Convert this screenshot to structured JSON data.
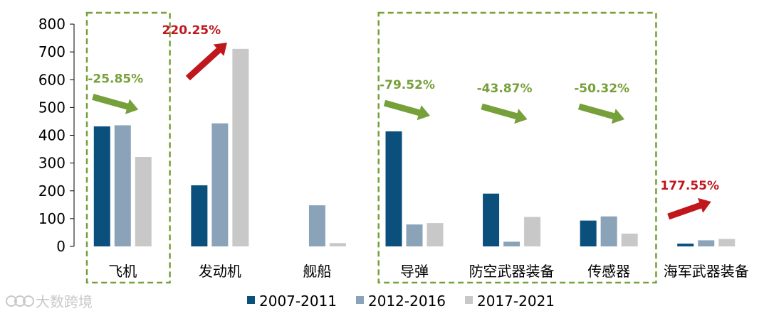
{
  "chart_data": {
    "type": "bar",
    "categories": [
      "飞机",
      "发动机",
      "舰船",
      "导弹",
      "防空武器装备",
      "传感器",
      "海军武器装备"
    ],
    "series": [
      {
        "name": "2007-2011",
        "color": "#0b4f7c",
        "values": [
          432,
          220,
          0,
          414,
          190,
          93,
          10
        ]
      },
      {
        "name": "2012-2016",
        "color": "#8aa3b8",
        "values": [
          436,
          443,
          148,
          79,
          17,
          108,
          22
        ]
      },
      {
        "name": "2017-2021",
        "color": "#c8c8c8",
        "values": [
          322,
          711,
          12,
          84,
          106,
          46,
          27
        ]
      }
    ],
    "ylim": [
      0,
      800
    ],
    "yticks": [
      0,
      100,
      200,
      300,
      400,
      500,
      600,
      700,
      800
    ],
    "legend_position": "bottom",
    "annotations": [
      {
        "category": "飞机",
        "text": "-25.85%",
        "direction": "down",
        "color": "#76a03a"
      },
      {
        "category": "发动机",
        "text": "220.25%",
        "direction": "up",
        "color": "#c0171d"
      },
      {
        "category": "导弹",
        "text": "-79.52%",
        "direction": "down",
        "color": "#76a03a"
      },
      {
        "category": "防空武器装备",
        "text": "-43.87%",
        "direction": "down",
        "color": "#76a03a"
      },
      {
        "category": "传感器",
        "text": "-50.32%",
        "direction": "down",
        "color": "#76a03a"
      },
      {
        "category": "海军武器装备",
        "text": "177.55%",
        "direction": "up",
        "color": "#c0171d"
      }
    ],
    "highlight_groups": [
      {
        "categories": [
          "飞机"
        ],
        "style": "dashed",
        "color": "#76a03a"
      },
      {
        "categories": [
          "导弹",
          "防空武器装备",
          "传感器"
        ],
        "style": "dashed",
        "color": "#76a03a"
      }
    ]
  },
  "watermark": "大数跨境"
}
